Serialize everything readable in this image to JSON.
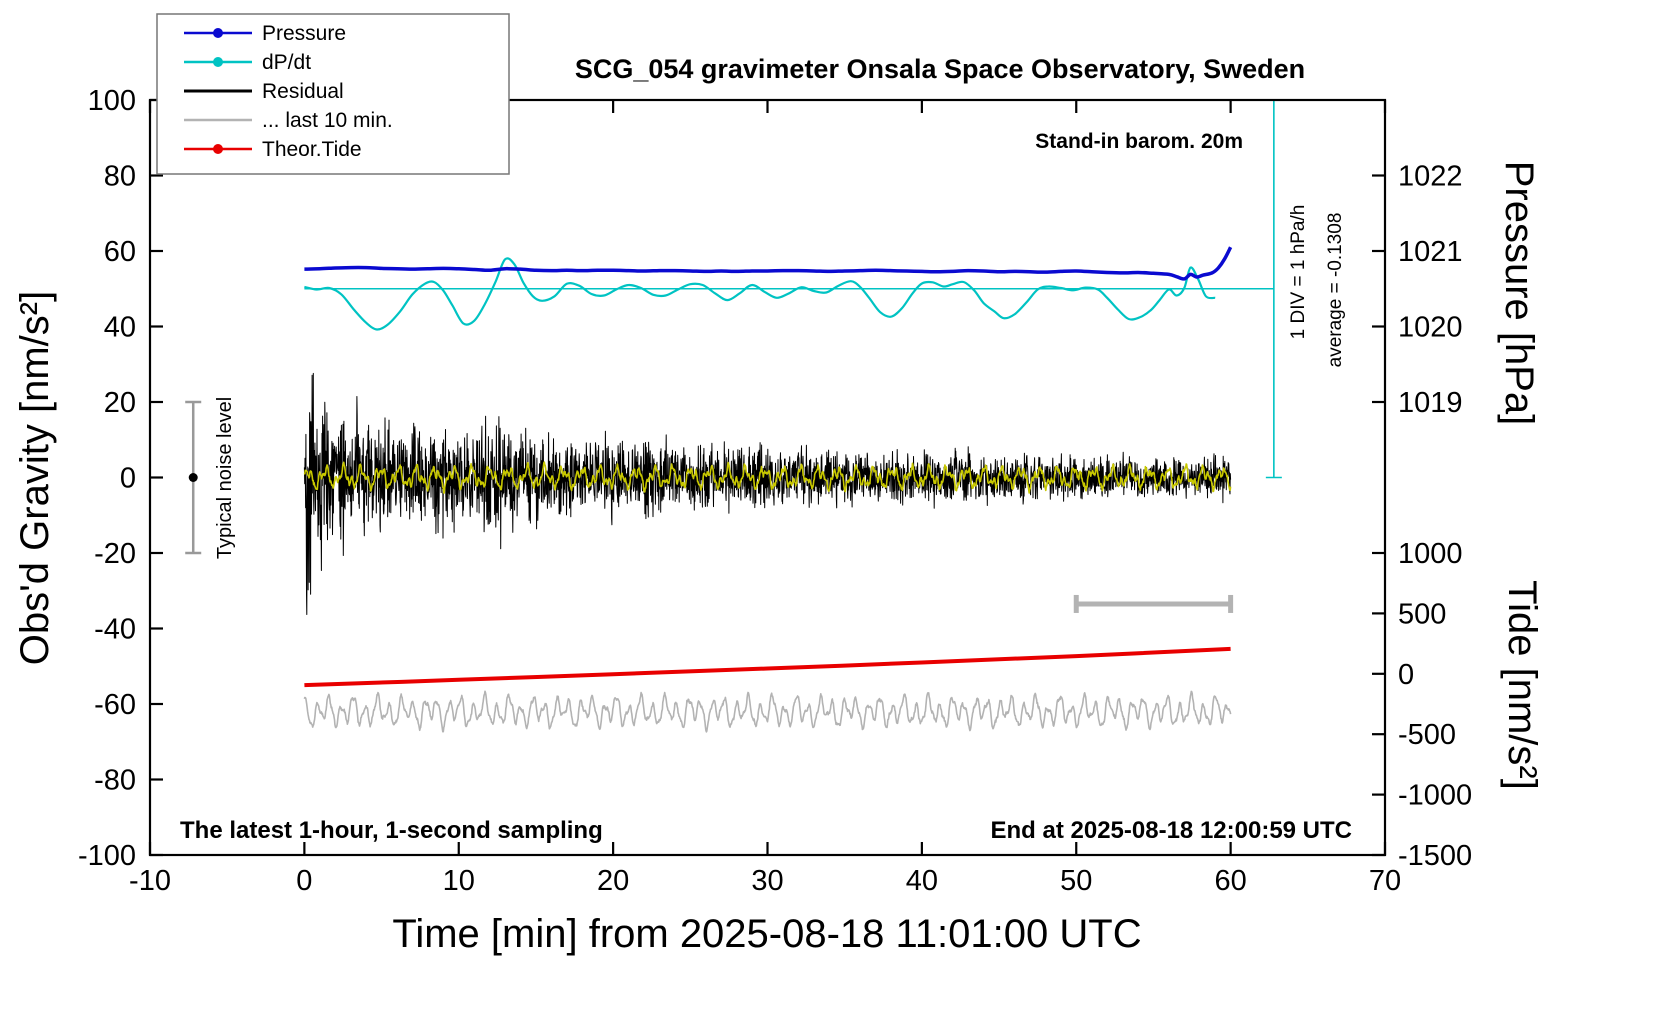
{
  "title": "SCG_054 gravimeter Onsala Space Observatory, Sweden",
  "annotations": {
    "barom": "Stand-in barom. 20m",
    "div": "1 DIV = 1 hPa/h",
    "average": "average = -0.1308",
    "noise_label": "Typical noise level",
    "sampling": "The latest 1-hour, 1-second sampling",
    "end": "End at 2025-08-18 12:00:59 UTC"
  },
  "axes": {
    "x": {
      "label": "Time [min] from 2025-08-18 11:01:00 UTC",
      "min": -10,
      "max": 70,
      "ticks": [
        -10,
        0,
        10,
        20,
        30,
        40,
        50,
        60,
        70
      ]
    },
    "y_left": {
      "label": "Obs'd Gravity [nm/s²]",
      "min": -100,
      "max": 100,
      "ticks": [
        -100,
        -80,
        -60,
        -40,
        -20,
        0,
        20,
        40,
        60,
        80,
        100
      ]
    },
    "pressure": {
      "label": "Pressure [hPa]",
      "ticks": [
        1022,
        1021,
        1020,
        1019
      ],
      "gravity_positions": [
        80,
        60,
        40,
        20
      ],
      "mapping": "hPa = 1018 + g/20"
    },
    "tide": {
      "label": "Tide [nm/s²]",
      "ticks": [
        1000,
        500,
        0,
        -500,
        -1000,
        -1500
      ],
      "gravity_positions": [
        -20,
        -36,
        -52,
        -68,
        -84,
        -100
      ]
    }
  },
  "legend": [
    {
      "label": "Pressure",
      "color": "#0a0ad0",
      "marker": "dot-line"
    },
    {
      "label": "dP/dt",
      "color": "#00c3c3",
      "marker": "dot-line"
    },
    {
      "label": "Residual",
      "color": "#000000",
      "marker": "line"
    },
    {
      "label": "... last 10 min.",
      "color": "#b3b3b3",
      "marker": "line"
    },
    {
      "label": "Theor.Tide",
      "color": "#e80000",
      "marker": "dot-line"
    }
  ],
  "chart_data": {
    "type": "line",
    "title": "SCG_054 gravimeter Onsala Space Observatory, Sweden",
    "xlabel": "Time [min] from 2025-08-18 11:01:00 UTC",
    "ylabel_left": "Obs'd Gravity [nm/s²]",
    "x_range": [
      -10,
      70
    ],
    "gravity_range": [
      -100,
      100
    ],
    "grid": false,
    "legend_position": "top-left",
    "references": {
      "dpdt_zero_line": {
        "g": 50,
        "x_start": 0,
        "x_end": 62.8
      },
      "div_indicator": {
        "x": 62.8,
        "g_top": 100,
        "g_bottom": 0,
        "color": "#00c3c3"
      },
      "last10_scale_bar": {
        "x_start": 50,
        "x_end": 60,
        "g": -33.5,
        "color": "#b3b3b3"
      },
      "noise_level_bar": {
        "x": -7.2,
        "g_low": -20,
        "g_high": 20,
        "color": "#999999"
      }
    },
    "series": [
      {
        "name": "residual_last_10_min",
        "label": "... last 10 min.",
        "color": "#b3b3b3",
        "width": 1.6,
        "type": "osc",
        "spec": {
          "seed": 13,
          "step": 0.03,
          "x_start": 0,
          "x_end": 60,
          "base": -62,
          "noise": 0.4,
          "components": [
            [
              2.7,
              8.1,
              1.0
            ],
            [
              1.5,
              3.7,
              2.6
            ],
            [
              0.9,
              17.3,
              0.3
            ]
          ]
        }
      },
      {
        "name": "theor_tide",
        "label": "Theor.Tide",
        "color": "#e80000",
        "width": 4,
        "type": "points",
        "smooth": true,
        "points": [
          [
            0,
            -55
          ],
          [
            10,
            -53.6
          ],
          [
            20,
            -52.1
          ],
          [
            30,
            -50.6
          ],
          [
            40,
            -49
          ],
          [
            50,
            -47.3
          ],
          [
            60,
            -45.4
          ]
        ]
      },
      {
        "name": "residual",
        "label": "Residual",
        "color": "#000000",
        "width": 1,
        "type": "noise",
        "spec": {
          "seed": 42,
          "step": 0.02,
          "x_start": 0,
          "x_end": 60,
          "base": 0,
          "envelope": [
            [
              0,
              8
            ],
            [
              0.1,
              46
            ],
            [
              0.3,
              40
            ],
            [
              0.6,
              30
            ],
            [
              1,
              32
            ],
            [
              1.4,
              20
            ],
            [
              2,
              14
            ],
            [
              2.6,
              20
            ],
            [
              3.2,
              16
            ],
            [
              3.8,
              22
            ],
            [
              4.4,
              14
            ],
            [
              5,
              18
            ],
            [
              6,
              13
            ],
            [
              7,
              15
            ],
            [
              8,
              12
            ],
            [
              9,
              16
            ],
            [
              10,
              13
            ],
            [
              11,
              18
            ],
            [
              12,
              15
            ],
            [
              13,
              17
            ],
            [
              14,
              12
            ],
            [
              15,
              14
            ],
            [
              16,
              11
            ],
            [
              17,
              13
            ],
            [
              18,
              10
            ],
            [
              19,
              12
            ],
            [
              20,
              13
            ],
            [
              21,
              11
            ],
            [
              22,
              12
            ],
            [
              23,
              10
            ],
            [
              24,
              11
            ],
            [
              25,
              9
            ],
            [
              26,
              10
            ],
            [
              27,
              9
            ],
            [
              28,
              10
            ],
            [
              30,
              9
            ],
            [
              32,
              8
            ],
            [
              34,
              8
            ],
            [
              36,
              7.5
            ],
            [
              38,
              8
            ],
            [
              40,
              7
            ],
            [
              42,
              7.5
            ],
            [
              44,
              7
            ],
            [
              46,
              6.5
            ],
            [
              48,
              7
            ],
            [
              50,
              6
            ],
            [
              52,
              6.5
            ],
            [
              54,
              6
            ],
            [
              56,
              6
            ],
            [
              58,
              5.5
            ],
            [
              60,
              6
            ]
          ]
        }
      },
      {
        "name": "residual_filtered",
        "label": "",
        "color": "#c8c800",
        "width": 1.6,
        "type": "osc",
        "spec": {
          "seed": 7,
          "step": 0.03,
          "x_start": 0,
          "x_end": 60,
          "base": 0,
          "noise": 0.5,
          "components": [
            [
              1.9,
              5.3,
              0.7
            ],
            [
              1.1,
              12.1,
              2.1
            ],
            [
              0.7,
              23.7,
              4.0
            ]
          ]
        }
      },
      {
        "name": "dpdt",
        "label": "dP/dt",
        "color": "#00c3c3",
        "width": 2.2,
        "type": "points",
        "smooth": true,
        "points": [
          [
            0,
            50.5
          ],
          [
            0.8,
            49.8
          ],
          [
            1.6,
            50.2
          ],
          [
            2.4,
            48.5
          ],
          [
            3.2,
            44.5
          ],
          [
            4,
            41
          ],
          [
            4.7,
            39.2
          ],
          [
            5.4,
            40.5
          ],
          [
            6.2,
            44
          ],
          [
            7,
            48.5
          ],
          [
            7.8,
            51.3
          ],
          [
            8.4,
            51.8
          ],
          [
            9,
            49.5
          ],
          [
            9.6,
            45.5
          ],
          [
            10.3,
            40.8
          ],
          [
            11,
            41.5
          ],
          [
            11.7,
            46
          ],
          [
            12.4,
            52
          ],
          [
            13,
            57.8
          ],
          [
            13.6,
            56.5
          ],
          [
            14.2,
            51.5
          ],
          [
            14.8,
            48
          ],
          [
            15.4,
            46.8
          ],
          [
            16.2,
            48
          ],
          [
            17,
            51.3
          ],
          [
            17.8,
            50.8
          ],
          [
            18.6,
            48.6
          ],
          [
            19.4,
            48.2
          ],
          [
            20.2,
            49.8
          ],
          [
            21,
            51
          ],
          [
            21.8,
            50.2
          ],
          [
            22.6,
            48.4
          ],
          [
            23.4,
            48.2
          ],
          [
            24.2,
            49.8
          ],
          [
            25,
            51.2
          ],
          [
            25.8,
            51
          ],
          [
            26.6,
            48.8
          ],
          [
            27.4,
            47
          ],
          [
            28.2,
            48.8
          ],
          [
            29,
            51
          ],
          [
            29.8,
            49.2
          ],
          [
            30.6,
            47.6
          ],
          [
            31.4,
            48.8
          ],
          [
            32.2,
            50.4
          ],
          [
            33,
            49.4
          ],
          [
            33.8,
            49
          ],
          [
            34.6,
            50.8
          ],
          [
            35.4,
            52
          ],
          [
            36,
            50.5
          ],
          [
            36.6,
            47.5
          ],
          [
            37.3,
            43.8
          ],
          [
            38,
            42.6
          ],
          [
            38.7,
            44.8
          ],
          [
            39.4,
            48.8
          ],
          [
            40,
            51.4
          ],
          [
            40.7,
            51.7
          ],
          [
            41.4,
            50.6
          ],
          [
            42,
            51.2
          ],
          [
            42.7,
            51.8
          ],
          [
            43.4,
            49.5
          ],
          [
            44,
            46.2
          ],
          [
            44.7,
            44
          ],
          [
            45.3,
            42.2
          ],
          [
            46,
            43.2
          ],
          [
            46.8,
            46.5
          ],
          [
            47.5,
            49.8
          ],
          [
            48.2,
            50.6
          ],
          [
            49,
            50.2
          ],
          [
            49.8,
            49.6
          ],
          [
            50.6,
            50.3
          ],
          [
            51.4,
            49.8
          ],
          [
            52,
            47.6
          ],
          [
            52.7,
            44.5
          ],
          [
            53.4,
            42
          ],
          [
            54.1,
            42.4
          ],
          [
            54.8,
            44.2
          ],
          [
            55.4,
            47
          ],
          [
            56,
            49.8
          ],
          [
            56.5,
            48.2
          ],
          [
            57,
            50.2
          ],
          [
            57.4,
            55.6
          ],
          [
            57.9,
            52.5
          ],
          [
            58.4,
            48
          ],
          [
            59,
            47.6
          ]
        ]
      },
      {
        "name": "pressure",
        "label": "Pressure",
        "color": "#0a0ad0",
        "width": 3.5,
        "type": "points",
        "smooth": true,
        "points": [
          [
            0,
            55.2
          ],
          [
            1,
            55.3
          ],
          [
            2,
            55.5
          ],
          [
            3,
            55.6
          ],
          [
            4,
            55.6
          ],
          [
            5,
            55.4
          ],
          [
            6,
            55.3
          ],
          [
            7,
            55.2
          ],
          [
            8,
            55.3
          ],
          [
            9,
            55.4
          ],
          [
            10,
            55.3
          ],
          [
            11,
            55.1
          ],
          [
            12,
            54.9
          ],
          [
            13,
            55.3
          ],
          [
            14,
            55.2
          ],
          [
            15,
            54.9
          ],
          [
            16,
            54.8
          ],
          [
            17,
            54.9
          ],
          [
            18,
            54.8
          ],
          [
            19,
            54.9
          ],
          [
            20,
            54.9
          ],
          [
            21,
            54.8
          ],
          [
            22,
            54.7
          ],
          [
            23,
            54.8
          ],
          [
            24,
            54.8
          ],
          [
            25,
            54.7
          ],
          [
            26,
            54.6
          ],
          [
            27,
            54.7
          ],
          [
            28,
            54.6
          ],
          [
            29,
            54.7
          ],
          [
            30,
            54.7
          ],
          [
            31,
            54.8
          ],
          [
            32,
            54.8
          ],
          [
            33,
            54.7
          ],
          [
            34,
            54.6
          ],
          [
            35,
            54.7
          ],
          [
            36,
            54.8
          ],
          [
            37,
            54.9
          ],
          [
            38,
            54.8
          ],
          [
            39,
            54.7
          ],
          [
            40,
            54.6
          ],
          [
            41,
            54.5
          ],
          [
            42,
            54.6
          ],
          [
            43,
            54.8
          ],
          [
            44,
            54.7
          ],
          [
            45,
            54.5
          ],
          [
            46,
            54.6
          ],
          [
            47,
            54.5
          ],
          [
            48,
            54.4
          ],
          [
            49,
            54.6
          ],
          [
            50,
            54.7
          ],
          [
            51,
            54.5
          ],
          [
            52,
            54.3
          ],
          [
            53,
            54.2
          ],
          [
            54,
            54.3
          ],
          [
            55,
            54.1
          ],
          [
            56,
            53.8
          ],
          [
            56.5,
            53.2
          ],
          [
            57,
            52.6
          ],
          [
            57.4,
            53.8
          ],
          [
            57.8,
            53.1
          ],
          [
            58.2,
            53.6
          ],
          [
            58.8,
            54.2
          ],
          [
            59.2,
            55.5
          ],
          [
            59.6,
            57.8
          ],
          [
            60,
            61
          ]
        ]
      }
    ]
  }
}
